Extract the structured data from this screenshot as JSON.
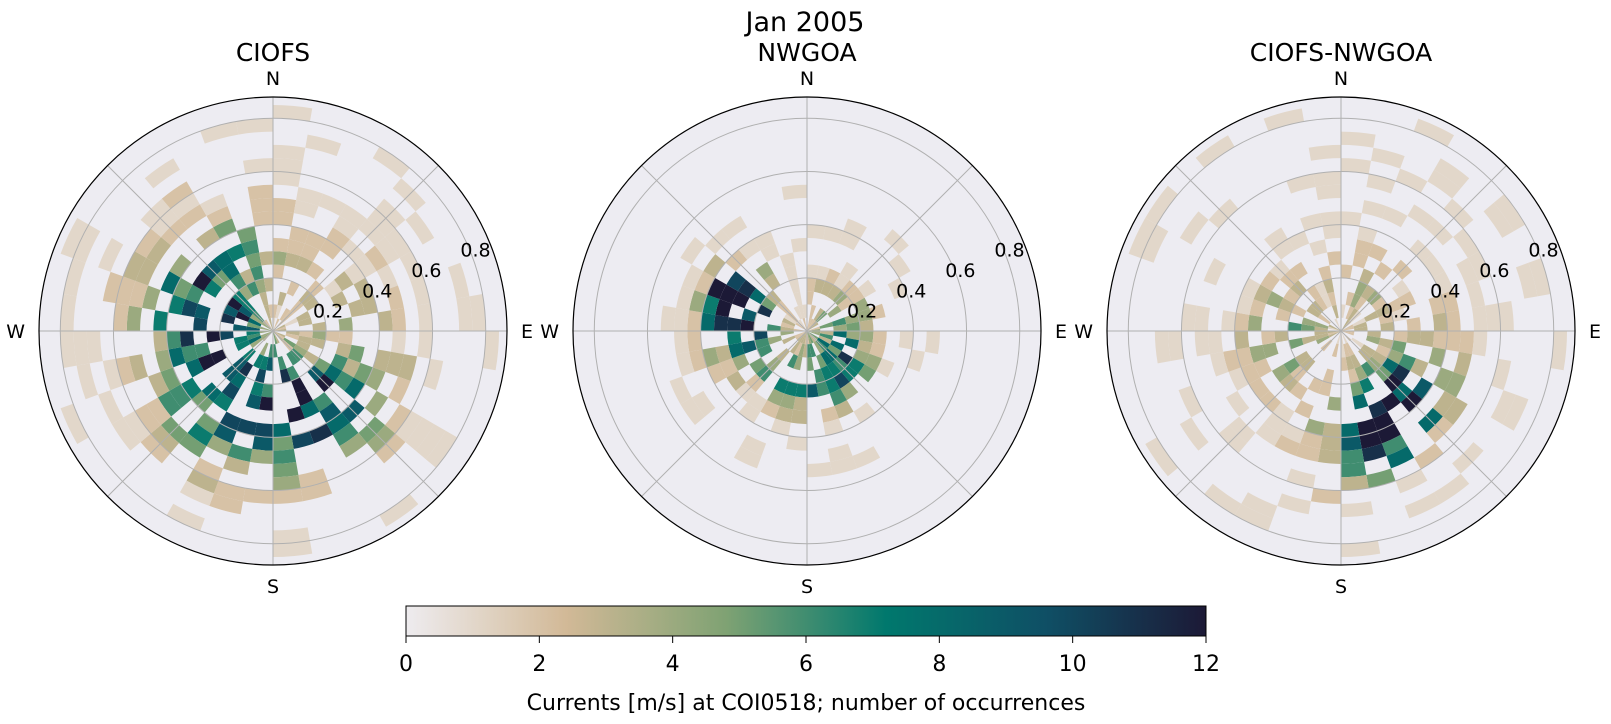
{
  "figure": {
    "title": "Jan 2005"
  },
  "chart_data": [
    {
      "type": "polar-histogram",
      "title": "CIOFS",
      "directions": [
        "N",
        "E",
        "S",
        "W"
      ],
      "radial_ticks": [
        "0.2",
        "0.4",
        "0.6",
        "0.8"
      ],
      "rlim": [
        0,
        0.88
      ],
      "grid": true,
      "bins": {
        "r_edges": [
          0.0,
          0.05,
          0.1,
          0.15,
          0.2,
          0.25,
          0.3,
          0.35,
          0.4,
          0.45,
          0.5,
          0.55,
          0.6,
          0.65,
          0.7,
          0.75,
          0.8,
          0.85,
          0.9
        ],
        "direction_bin_deg": 10,
        "counts": "approximated 2D histogram (speed vs direction) of occurrence counts"
      }
    },
    {
      "type": "polar-histogram",
      "title": "NWGOA",
      "directions": [
        "N",
        "E",
        "S",
        "W"
      ],
      "radial_ticks": [
        "0.2",
        "0.4",
        "0.6",
        "0.8"
      ],
      "rlim": [
        0,
        0.88
      ],
      "grid": true,
      "bins": {
        "r_edges": [
          0.0,
          0.05,
          0.1,
          0.15,
          0.2,
          0.25,
          0.3,
          0.35,
          0.4,
          0.45,
          0.5,
          0.55,
          0.6,
          0.65,
          0.7,
          0.75,
          0.8,
          0.85,
          0.9
        ],
        "direction_bin_deg": 10,
        "counts": "approximated 2D histogram (speed vs direction) of occurrence counts"
      }
    },
    {
      "type": "polar-histogram",
      "title": "CIOFS-NWGOA",
      "directions": [
        "N",
        "E",
        "S",
        "W"
      ],
      "radial_ticks": [
        "0.2",
        "0.4",
        "0.6",
        "0.8"
      ],
      "rlim": [
        0,
        0.88
      ],
      "grid": true,
      "bins": {
        "r_edges": [
          0.0,
          0.05,
          0.1,
          0.15,
          0.2,
          0.25,
          0.3,
          0.35,
          0.4,
          0.45,
          0.5,
          0.55,
          0.6,
          0.65,
          0.7,
          0.75,
          0.8,
          0.85,
          0.9
        ],
        "direction_bin_deg": 10,
        "counts": "approximated 2D histogram (speed vs direction) of occurrence counts"
      }
    }
  ],
  "colorbar": {
    "label": "Currents [m/s] at COI0518; number of occurrences",
    "ticks": [
      "0",
      "2",
      "4",
      "6",
      "8",
      "10",
      "12"
    ],
    "range": [
      0,
      12
    ],
    "colormap": [
      "#eeecef",
      "#d2b997",
      "#7fa273",
      "#00786d",
      "#0f4f65",
      "#1c1936"
    ]
  },
  "colors": {
    "axes_bg": "#edecf2",
    "grid": "#b0b0b0"
  }
}
